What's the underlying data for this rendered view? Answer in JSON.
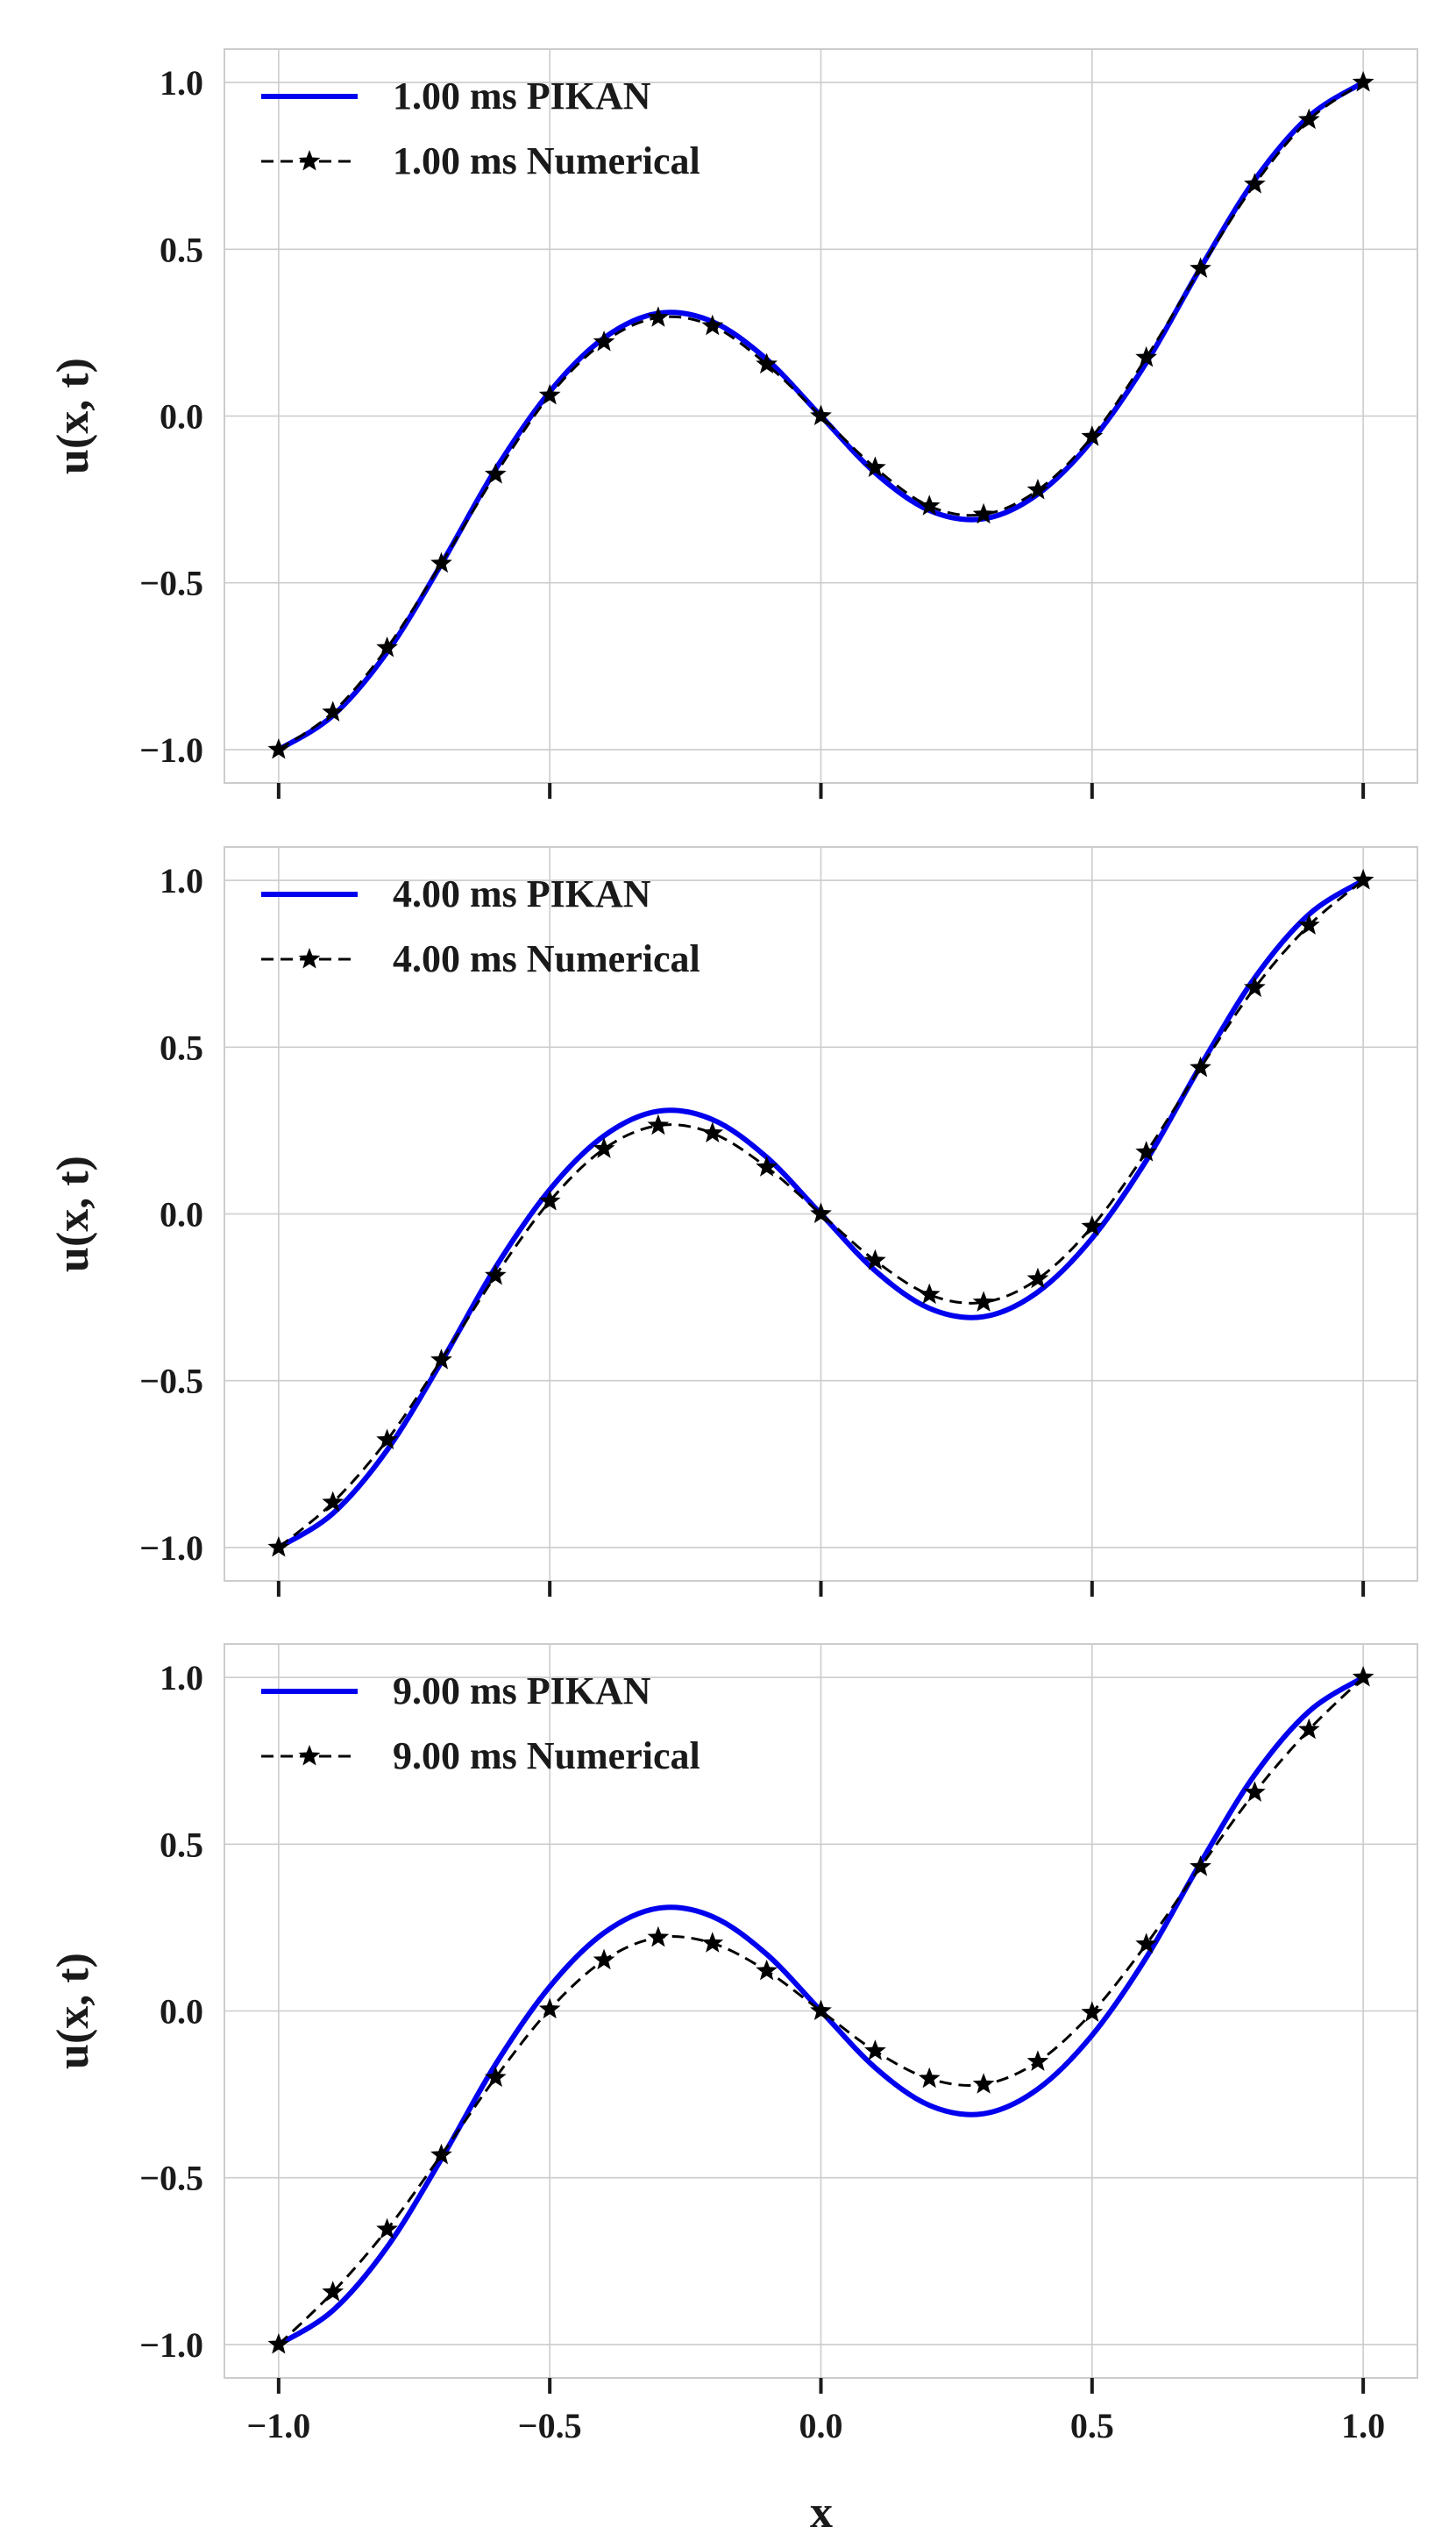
{
  "figure": {
    "shared_xlabel": "x",
    "colors": {
      "pikan": "#0000ee",
      "numerical": "#000000",
      "grid": "#cccccc",
      "frame": "#cccccc"
    }
  },
  "chart_data": [
    {
      "type": "line",
      "ylabel": "u(x, t)",
      "xlim": [
        -1.1,
        1.1
      ],
      "ylim": [
        -1.1,
        1.1
      ],
      "xticks": [
        -1.0,
        -0.5,
        0.0,
        0.5,
        1.0
      ],
      "xtick_labels": [
        "−1.0",
        "−0.5",
        "0.0",
        "0.5",
        "1.0"
      ],
      "show_xtick_labels": false,
      "yticks": [
        1.0,
        0.5,
        0.0,
        -0.5,
        -1.0
      ],
      "ytick_labels": [
        "1.0",
        "0.5",
        "0.0",
        "−0.5",
        "−1.0"
      ],
      "grid": true,
      "legend_position": "top-left",
      "pikan": {
        "name": "1.00 ms PIKAN",
        "style": "solid",
        "x": [
          -1.0,
          -0.9,
          -0.8,
          -0.7,
          -0.6,
          -0.5,
          -0.4,
          -0.3,
          -0.2,
          -0.1,
          0.0,
          0.1,
          0.2,
          0.3,
          0.4,
          0.5,
          0.6,
          0.7,
          0.8,
          0.9,
          1.0
        ],
        "y": [
          -1.0,
          -0.898,
          -0.708,
          -0.444,
          -0.16,
          0.073,
          0.234,
          0.308,
          0.283,
          0.17,
          0.0,
          -0.17,
          -0.283,
          -0.308,
          -0.234,
          -0.073,
          0.16,
          0.444,
          0.708,
          0.898,
          1.0
        ]
      },
      "numerical": {
        "name": "1.00 ms Numerical",
        "style": "dashed-star",
        "x": [
          -1.0,
          -0.9,
          -0.8,
          -0.7,
          -0.6,
          -0.5,
          -0.4,
          -0.3,
          -0.2,
          -0.1,
          0.0,
          0.1,
          0.2,
          0.3,
          0.4,
          0.5,
          0.6,
          0.7,
          0.8,
          0.9,
          1.0
        ],
        "y": [
          -1.0,
          -0.888,
          -0.695,
          -0.442,
          -0.175,
          0.062,
          0.222,
          0.295,
          0.27,
          0.155,
          0.0,
          -0.155,
          -0.27,
          -0.295,
          -0.222,
          -0.062,
          0.175,
          0.442,
          0.695,
          0.888,
          1.0
        ]
      }
    },
    {
      "type": "line",
      "ylabel": "u(x, t)",
      "xlim": [
        -1.1,
        1.1
      ],
      "ylim": [
        -1.1,
        1.1
      ],
      "xticks": [
        -1.0,
        -0.5,
        0.0,
        0.5,
        1.0
      ],
      "xtick_labels": [
        "−1.0",
        "−0.5",
        "0.0",
        "0.5",
        "1.0"
      ],
      "show_xtick_labels": false,
      "yticks": [
        1.0,
        0.5,
        0.0,
        -0.5,
        -1.0
      ],
      "ytick_labels": [
        "1.0",
        "0.5",
        "0.0",
        "−0.5",
        "−1.0"
      ],
      "grid": true,
      "legend_position": "top-left",
      "pikan": {
        "name": "4.00 ms PIKAN",
        "style": "solid",
        "x": [
          -1.0,
          -0.9,
          -0.8,
          -0.7,
          -0.6,
          -0.5,
          -0.4,
          -0.3,
          -0.2,
          -0.1,
          0.0,
          0.1,
          0.2,
          0.3,
          0.4,
          0.5,
          0.6,
          0.7,
          0.8,
          0.9,
          1.0
        ],
        "y": [
          -1.0,
          -0.898,
          -0.708,
          -0.444,
          -0.16,
          0.073,
          0.234,
          0.308,
          0.283,
          0.17,
          0.0,
          -0.17,
          -0.283,
          -0.308,
          -0.234,
          -0.073,
          0.16,
          0.444,
          0.708,
          0.898,
          1.0
        ]
      },
      "numerical": {
        "name": "4.00 ms Numerical",
        "style": "dashed-star",
        "x": [
          -1.0,
          -0.9,
          -0.8,
          -0.7,
          -0.6,
          -0.5,
          -0.4,
          -0.3,
          -0.2,
          -0.1,
          0.0,
          0.1,
          0.2,
          0.3,
          0.4,
          0.5,
          0.6,
          0.7,
          0.8,
          0.9,
          1.0
        ],
        "y": [
          -1.0,
          -0.865,
          -0.678,
          -0.438,
          -0.185,
          0.038,
          0.195,
          0.265,
          0.242,
          0.14,
          0.0,
          -0.14,
          -0.242,
          -0.265,
          -0.195,
          -0.038,
          0.185,
          0.438,
          0.678,
          0.865,
          1.0
        ]
      }
    },
    {
      "type": "line",
      "ylabel": "u(x, t)",
      "xlabel": "x",
      "xlim": [
        -1.1,
        1.1
      ],
      "ylim": [
        -1.1,
        1.1
      ],
      "xticks": [
        -1.0,
        -0.5,
        0.0,
        0.5,
        1.0
      ],
      "xtick_labels": [
        "−1.0",
        "−0.5",
        "0.0",
        "0.5",
        "1.0"
      ],
      "show_xtick_labels": true,
      "yticks": [
        1.0,
        0.5,
        0.0,
        -0.5,
        -1.0
      ],
      "ytick_labels": [
        "1.0",
        "0.5",
        "0.0",
        "−0.5",
        "−1.0"
      ],
      "grid": true,
      "legend_position": "top-left",
      "pikan": {
        "name": "9.00 ms PIKAN",
        "style": "solid",
        "x": [
          -1.0,
          -0.9,
          -0.8,
          -0.7,
          -0.6,
          -0.5,
          -0.4,
          -0.3,
          -0.2,
          -0.1,
          0.0,
          0.1,
          0.2,
          0.3,
          0.4,
          0.5,
          0.6,
          0.7,
          0.8,
          0.9,
          1.0
        ],
        "y": [
          -1.0,
          -0.898,
          -0.708,
          -0.444,
          -0.16,
          0.073,
          0.234,
          0.308,
          0.283,
          0.17,
          0.0,
          -0.17,
          -0.283,
          -0.308,
          -0.234,
          -0.073,
          0.16,
          0.444,
          0.708,
          0.898,
          1.0
        ]
      },
      "numerical": {
        "name": "9.00 ms Numerical",
        "style": "dashed-star",
        "x": [
          -1.0,
          -0.9,
          -0.8,
          -0.7,
          -0.6,
          -0.5,
          -0.4,
          -0.3,
          -0.2,
          -0.1,
          0.0,
          0.1,
          0.2,
          0.3,
          0.4,
          0.5,
          0.6,
          0.7,
          0.8,
          0.9,
          1.0
        ],
        "y": [
          -1.0,
          -0.843,
          -0.655,
          -0.432,
          -0.2,
          0.005,
          0.152,
          0.22,
          0.203,
          0.12,
          0.0,
          -0.12,
          -0.203,
          -0.22,
          -0.152,
          -0.005,
          0.2,
          0.432,
          0.655,
          0.843,
          1.0
        ]
      }
    }
  ]
}
